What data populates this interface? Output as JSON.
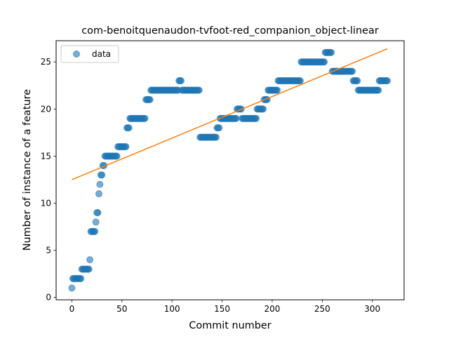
{
  "chart_data": {
    "type": "scatter",
    "title": "com-benoitquenaudon-tvfoot-red_companion_object-linear",
    "xlabel": "Commit number",
    "ylabel": "Number of instance of a feature",
    "xlim": [
      -15.7,
      331.7
    ],
    "ylim": [
      -0.25,
      27.25
    ],
    "xticks": [
      0,
      50,
      100,
      150,
      200,
      250,
      300
    ],
    "yticks": [
      0,
      5,
      10,
      15,
      20,
      25
    ],
    "grid": false,
    "legend": {
      "position": "top-left",
      "entries": [
        "data"
      ]
    },
    "colors": {
      "points": "#1f77b4",
      "fit": "#ff7f0e"
    },
    "series": [
      {
        "name": "data",
        "style": "markers",
        "segments": [
          [
            0,
            0,
            1
          ],
          [
            1,
            9,
            2
          ],
          [
            10,
            17,
            3
          ],
          [
            18,
            18,
            4
          ],
          [
            19,
            23,
            7
          ],
          [
            24,
            24,
            8
          ],
          [
            25,
            26,
            9
          ],
          [
            27,
            27,
            11
          ],
          [
            28,
            28,
            12
          ],
          [
            29,
            30,
            13
          ],
          [
            31,
            32,
            14
          ],
          [
            33,
            45,
            15
          ],
          [
            46,
            54,
            16
          ],
          [
            55,
            57,
            18
          ],
          [
            58,
            73,
            19
          ],
          [
            74,
            78,
            21
          ],
          [
            79,
            106,
            22
          ],
          [
            107,
            109,
            23
          ],
          [
            110,
            127,
            22
          ],
          [
            128,
            144,
            17
          ],
          [
            145,
            147,
            18
          ],
          [
            148,
            164,
            19
          ],
          [
            165,
            169,
            20
          ],
          [
            170,
            184,
            19
          ],
          [
            185,
            191,
            20
          ],
          [
            192,
            195,
            21
          ],
          [
            196,
            205,
            22
          ],
          [
            206,
            228,
            23
          ],
          [
            229,
            252,
            25
          ],
          [
            253,
            259,
            26
          ],
          [
            260,
            280,
            24
          ],
          [
            281,
            285,
            23
          ],
          [
            286,
            306,
            22
          ],
          [
            307,
            315,
            23
          ]
        ]
      },
      {
        "name": "fit",
        "style": "line",
        "points": [
          [
            0,
            12.5
          ],
          [
            315,
            26.4
          ]
        ]
      }
    ]
  }
}
